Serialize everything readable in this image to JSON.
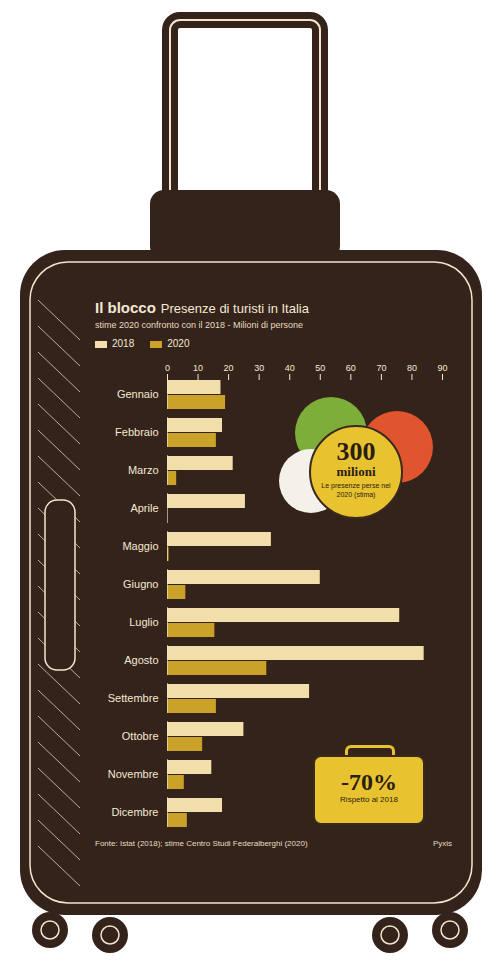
{
  "chart_data": {
    "type": "bar",
    "orientation": "horizontal",
    "title": "Il blocco",
    "subtitle": "Presenze di turisti in Italia",
    "description": "stime 2020 confronto con il 2018 - Milioni di persone",
    "categories": [
      "Gennaio",
      "Febbraio",
      "Marzo",
      "Aprile",
      "Maggio",
      "Giugno",
      "Luglio",
      "Agosto",
      "Settembre",
      "Ottobre",
      "Novembre",
      "Dicembre"
    ],
    "series": [
      {
        "name": "2018",
        "color": "#f1deab",
        "values": [
          17.5,
          18,
          21.5,
          25.5,
          34,
          50,
          76,
          84,
          46.5,
          25,
          14.5,
          18
        ]
      },
      {
        "name": "2020",
        "color": "#c9a227",
        "values": [
          19,
          16,
          3,
          0,
          0.5,
          6,
          15.5,
          32.5,
          16,
          11.5,
          5.5,
          6.5
        ]
      }
    ],
    "xlim": [
      0,
      90
    ],
    "xticks": [
      0,
      10,
      20,
      30,
      40,
      50,
      60,
      70,
      80,
      90
    ],
    "grid": false,
    "legend": "top-left",
    "annotations": [
      {
        "value_text": "300",
        "unit": "milioni",
        "text": "Le presenze perse nel 2020 (stima)"
      },
      {
        "value_text": "-70%",
        "text": "Rispetto al 2018"
      }
    ],
    "source": "Fonte: Istat (2018); stime Centro Studi Federalberghi (2020)",
    "credit": "Pyxis"
  }
}
